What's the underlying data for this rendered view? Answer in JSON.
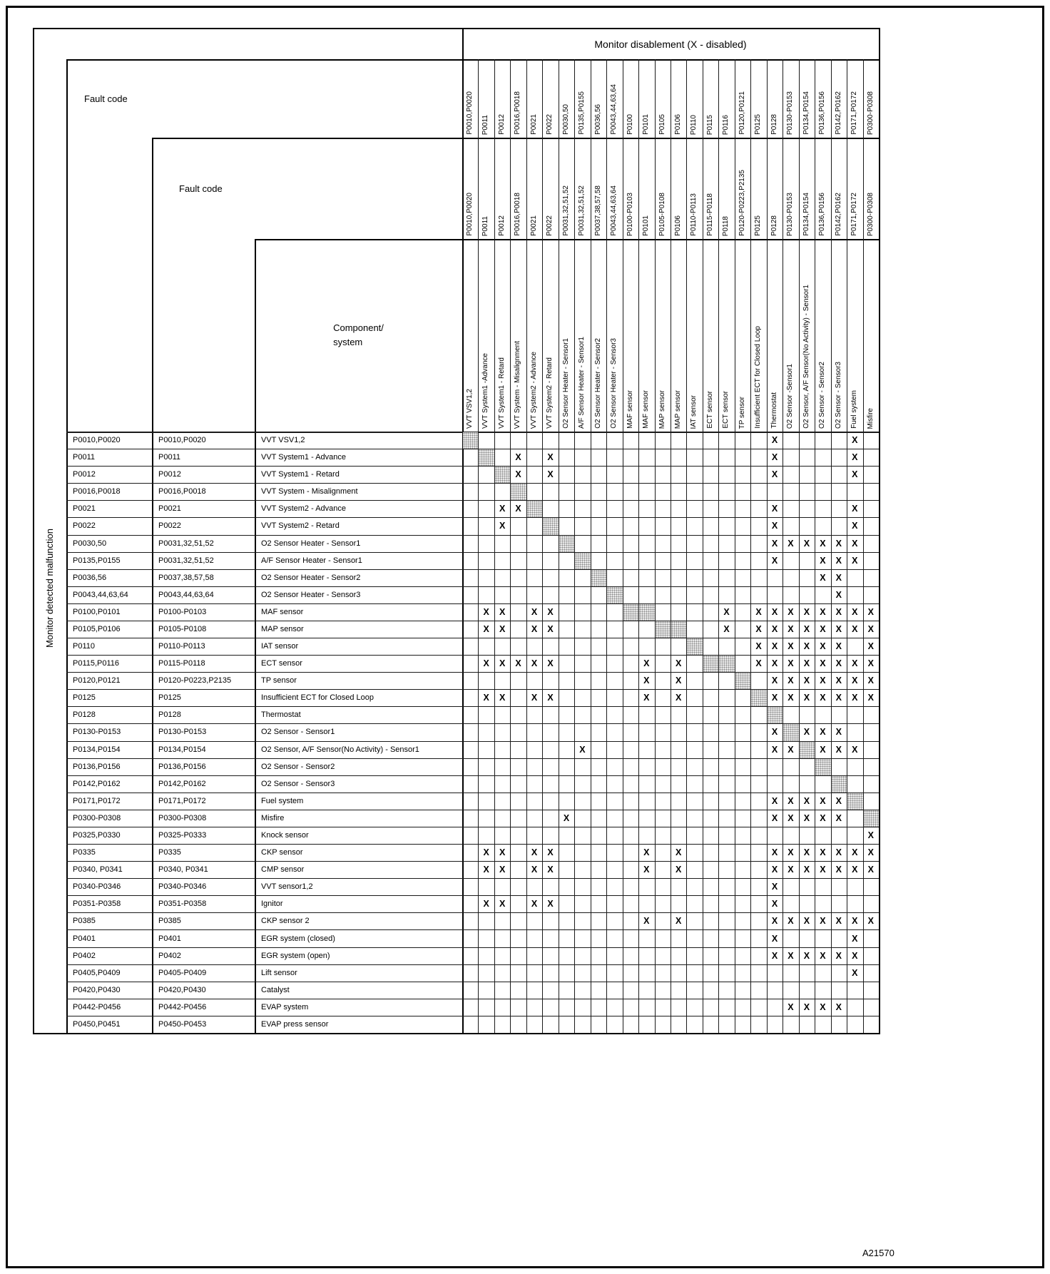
{
  "page": {
    "title": "Monitor disablement (X - disabled)",
    "left_label": "Monitor detected malfunction",
    "fault_code_label_1": "Fault code",
    "fault_code_label_2": "Fault code",
    "component_label_line1": "Component/",
    "component_label_line2": "system",
    "figure_id": "A21570",
    "x_mark": "X"
  },
  "columns": [
    {
      "top": "P0010,P0020",
      "mid": "P0010,P0020",
      "name": "VVT VSV1,2"
    },
    {
      "top": "P0011",
      "mid": "P0011",
      "name": "VVT System1 -Advance"
    },
    {
      "top": "P0012",
      "mid": "P0012",
      "name": "VVT System1 - Retard"
    },
    {
      "top": "P0016,P0018",
      "mid": "P0016,P0018",
      "name": "VVT System - Misalignment"
    },
    {
      "top": "P0021",
      "mid": "P0021",
      "name": "VVT System2 - Advance"
    },
    {
      "top": "P0022",
      "mid": "P0022",
      "name": "VVT System2 - Retard"
    },
    {
      "top": "P0030,50",
      "mid": "P0031,32,51,52",
      "name": "O2 Sensor  Heater - Sensor1"
    },
    {
      "top": "P0135,P0155",
      "mid": "P0031,32,51,52",
      "name": "A/F Sensor Heater - Sensor1"
    },
    {
      "top": "P0036,56",
      "mid": "P0037,38,57,58",
      "name": "O2 Sensor Heater - Sensor2"
    },
    {
      "top": "P0043,44,63,64",
      "mid": "P0043,44,63,64",
      "name": "O2 Sensor Heater - Sensor3"
    },
    {
      "top": "P0100",
      "mid": "P0100-P0103",
      "name": "MAF sensor"
    },
    {
      "top": "P0101",
      "mid": "P0101",
      "name": "MAF sensor"
    },
    {
      "top": "P0105",
      "mid": "P0105-P0108",
      "name": "MAP sensor"
    },
    {
      "top": "P0106",
      "mid": "P0106",
      "name": "MAP sensor"
    },
    {
      "top": "P0110",
      "mid": "P0110-P0113",
      "name": "IAT sensor"
    },
    {
      "top": "P0115",
      "mid": "P0115-P0118",
      "name": "ECT sensor"
    },
    {
      "top": "P0116",
      "mid": "P0118",
      "name": "ECT sensor"
    },
    {
      "top": "P0120,P0121",
      "mid": "P0120-P0223,P2135",
      "name": "TP sensor"
    },
    {
      "top": "P0125",
      "mid": "P0125",
      "name": "Insufficient ECT for Closed Loop"
    },
    {
      "top": "P0128",
      "mid": "P0128",
      "name": "Thermostat"
    },
    {
      "top": "P0130-P0153",
      "mid": "P0130-P0153",
      "name": "O2 Sensor -Sensor1"
    },
    {
      "top": "P0134,P0154",
      "mid": "P0134,P0154",
      "name": "O2 Sensor, A/F Sensor(No Activity) - Sensor1"
    },
    {
      "top": "P0136,P0156",
      "mid": "P0136,P0156",
      "name": "O2 Sensor - Sensor2"
    },
    {
      "top": "P0142,P0162",
      "mid": "P0142,P0162",
      "name": "O2 Sensor - Sensor3"
    },
    {
      "top": "P0171,P0172",
      "mid": "P0171,P0172",
      "name": "Fuel system"
    },
    {
      "top": "P0300-P0308",
      "mid": "P0300-P0308",
      "name": "Misfire"
    }
  ],
  "rows": [
    {
      "f1": "P0010,P0020",
      "f2": "P0010,P0020",
      "comp": "VVT VSV1,2",
      "self": [
        1,
        1
      ],
      "x": [
        20,
        25
      ]
    },
    {
      "f1": "P0011",
      "f2": "P0011",
      "comp": "VVT System1 - Advance",
      "self": [
        2,
        2
      ],
      "x": [
        4,
        6,
        20,
        25
      ]
    },
    {
      "f1": "P0012",
      "f2": "P0012",
      "comp": "VVT System1 - Retard",
      "self": [
        3,
        3
      ],
      "x": [
        4,
        6,
        20,
        25
      ]
    },
    {
      "f1": "P0016,P0018",
      "f2": "P0016,P0018",
      "comp": "VVT System - Misalignment",
      "self": [
        4,
        4
      ],
      "x": []
    },
    {
      "f1": "P0021",
      "f2": "P0021",
      "comp": "VVT System2 - Advance",
      "self": [
        5,
        5
      ],
      "x": [
        3,
        4,
        20,
        25
      ]
    },
    {
      "f1": "P0022",
      "f2": "P0022",
      "comp": "VVT System2 - Retard",
      "self": [
        6,
        6
      ],
      "x": [
        3,
        20,
        25
      ]
    },
    {
      "f1": "P0030,50",
      "f2": "P0031,32,51,52",
      "comp": "O2 Sensor Heater - Sensor1",
      "self": [
        7,
        7
      ],
      "x": [
        20,
        21,
        22,
        23,
        24,
        25
      ]
    },
    {
      "f1": "P0135,P0155",
      "f2": "P0031,32,51,52",
      "comp": "A/F Sensor Heater  - Sensor1",
      "self": [
        8,
        8
      ],
      "x": [
        20,
        23,
        24,
        25
      ]
    },
    {
      "f1": "P0036,56",
      "f2": "P0037,38,57,58",
      "comp": "O2 Sensor Heater - Sensor2",
      "self": [
        9,
        9
      ],
      "x": [
        23,
        24
      ]
    },
    {
      "f1": "P0043,44,63,64",
      "f2": "P0043,44,63,64",
      "comp": "O2 Sensor Heater - Sensor3",
      "self": [
        10,
        10
      ],
      "x": [
        24
      ]
    },
    {
      "f1": "P0100,P0101",
      "f2": "P0100-P0103",
      "comp": "MAF sensor",
      "self": [
        11,
        12
      ],
      "x": [
        2,
        3,
        5,
        6,
        17,
        19,
        20,
        21,
        22,
        23,
        24,
        25,
        26
      ]
    },
    {
      "f1": "P0105,P0106",
      "f2": "P0105-P0108",
      "comp": "MAP sensor",
      "self": [
        13,
        14
      ],
      "x": [
        2,
        3,
        5,
        6,
        17,
        19,
        20,
        21,
        22,
        23,
        24,
        25,
        26
      ]
    },
    {
      "f1": "P0110",
      "f2": "P0110-P0113",
      "comp": "IAT sensor",
      "self": [
        15,
        15
      ],
      "x": [
        19,
        20,
        21,
        22,
        23,
        24,
        26
      ]
    },
    {
      "f1": "P0115,P0116",
      "f2": "P0115-P0118",
      "comp": "ECT sensor",
      "self": [
        16,
        17
      ],
      "x": [
        2,
        3,
        4,
        5,
        6,
        12,
        14,
        19,
        20,
        21,
        22,
        23,
        24,
        25,
        26
      ]
    },
    {
      "f1": "P0120,P0121",
      "f2": "P0120-P0223,P2135",
      "comp": "TP sensor",
      "self": [
        18,
        18
      ],
      "x": [
        12,
        14,
        20,
        21,
        22,
        23,
        24,
        25,
        26
      ]
    },
    {
      "f1": "P0125",
      "f2": "P0125",
      "comp": "Insufficient ECT for Closed Loop",
      "self": [
        19,
        19
      ],
      "x": [
        2,
        3,
        5,
        6,
        12,
        14,
        20,
        21,
        22,
        23,
        24,
        25,
        26
      ]
    },
    {
      "f1": "P0128",
      "f2": "P0128",
      "comp": "Thermostat",
      "self": [
        20,
        20
      ],
      "x": []
    },
    {
      "f1": "P0130-P0153",
      "f2": "P0130-P0153",
      "comp": "O2 Sensor - Sensor1",
      "self": [
        21,
        21
      ],
      "x": [
        20,
        22,
        23,
        24
      ]
    },
    {
      "f1": "P0134,P0154",
      "f2": "P0134,P0154",
      "comp": "O2 Sensor, A/F Sensor(No Activity) - Sensor1",
      "self": [
        22,
        22
      ],
      "x": [
        8,
        20,
        21,
        23,
        24,
        25
      ]
    },
    {
      "f1": "P0136,P0156",
      "f2": "P0136,P0156",
      "comp": "O2 Sensor - Sensor2",
      "self": [
        23,
        23
      ],
      "x": []
    },
    {
      "f1": "P0142,P0162",
      "f2": "P0142,P0162",
      "comp": "O2 Sensor - Sensor3",
      "self": [
        24,
        24
      ],
      "x": []
    },
    {
      "f1": "P0171,P0172",
      "f2": "P0171,P0172",
      "comp": "Fuel system",
      "self": [
        25,
        25
      ],
      "x": [
        20,
        21,
        22,
        23,
        24
      ]
    },
    {
      "f1": "P0300-P0308",
      "f2": "P0300-P0308",
      "comp": "Misfire",
      "self": [
        26,
        26
      ],
      "x": [
        7,
        20,
        21,
        22,
        23,
        24
      ]
    },
    {
      "f1": "P0325,P0330",
      "f2": "P0325-P0333",
      "comp": "Knock sensor",
      "self": null,
      "x": [
        26
      ]
    },
    {
      "f1": "P0335",
      "f2": "P0335",
      "comp": "CKP sensor",
      "self": null,
      "x": [
        2,
        3,
        5,
        6,
        12,
        14,
        20,
        21,
        22,
        23,
        24,
        25,
        26
      ]
    },
    {
      "f1": "P0340, P0341",
      "f2": "P0340, P0341",
      "comp": "CMP sensor",
      "self": null,
      "x": [
        2,
        3,
        5,
        6,
        12,
        14,
        20,
        21,
        22,
        23,
        24,
        25,
        26
      ]
    },
    {
      "f1": "P0340-P0346",
      "f2": "P0340-P0346",
      "comp": "VVT sensor1,2",
      "self": null,
      "x": [
        20
      ]
    },
    {
      "f1": "P0351-P0358",
      "f2": "P0351-P0358",
      "comp": "Ignitor",
      "self": null,
      "x": [
        2,
        3,
        5,
        6,
        20
      ]
    },
    {
      "f1": "P0385",
      "f2": "P0385",
      "comp": "CKP sensor 2",
      "self": null,
      "x": [
        12,
        14,
        20,
        21,
        22,
        23,
        24,
        25,
        26
      ]
    },
    {
      "f1": "P0401",
      "f2": "P0401",
      "comp": "EGR system (closed)",
      "self": null,
      "x": [
        20,
        25
      ]
    },
    {
      "f1": "P0402",
      "f2": "P0402",
      "comp": "EGR system (open)",
      "self": null,
      "x": [
        20,
        21,
        22,
        23,
        24,
        25
      ]
    },
    {
      "f1": "P0405,P0409",
      "f2": "P0405-P0409",
      "comp": "Lift sensor",
      "self": null,
      "x": [
        25
      ]
    },
    {
      "f1": "P0420,P0430",
      "f2": "P0420,P0430",
      "comp": "Catalyst",
      "self": null,
      "x": []
    },
    {
      "f1": "P0442-P0456",
      "f2": "P0442-P0456",
      "comp": "EVAP system",
      "self": null,
      "x": [
        21,
        22,
        23,
        24
      ]
    },
    {
      "f1": "P0450,P0451",
      "f2": "P0450-P0453",
      "comp": "EVAP press sensor",
      "self": null,
      "x": []
    }
  ]
}
